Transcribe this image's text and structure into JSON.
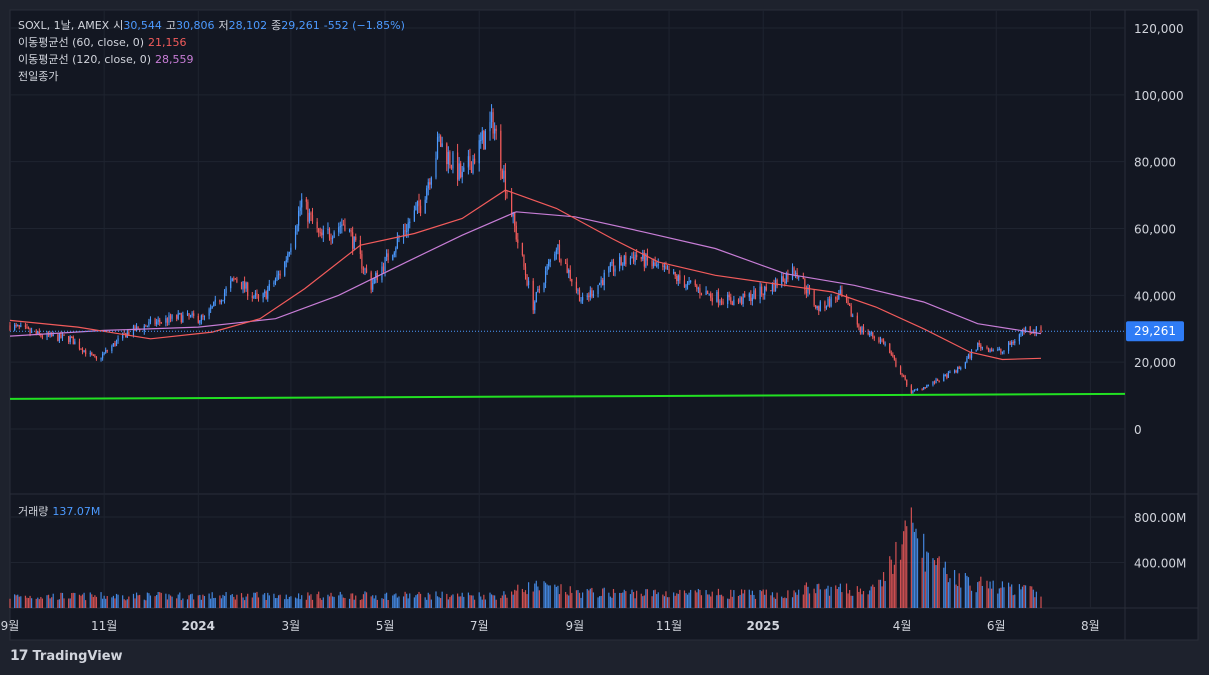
{
  "header": {
    "symbol": "SOXL, 1날, AMEX",
    "open_label": "시",
    "open": "30,544",
    "high_label": "고",
    "high": "30,806",
    "low_label": "저",
    "low": "28,102",
    "close_label": "종",
    "close": "29,261",
    "change": "-552 (−1.85%)"
  },
  "indicators": [
    {
      "label": "이동평균선 (60, close, 0)",
      "value": "21,156",
      "color": "#f25b5b"
    },
    {
      "label": "이동평균선 (120, close, 0)",
      "value": "28,559",
      "color": "#c77dd6"
    }
  ],
  "prev_close_label": "전일종가",
  "volume": {
    "label": "거래량",
    "value": "137.07M"
  },
  "brand": {
    "name": "TradingView",
    "logo": "17"
  },
  "colors": {
    "up": "#4c9aff",
    "down": "#f25b5b",
    "ma60": "#f25b5b",
    "ma120": "#c77dd6",
    "trendline": "#22e022",
    "price_tag": "#2f7cf6"
  },
  "chart_data": {
    "type": "candlestick",
    "price_axis": {
      "ticks": [
        0,
        20000,
        40000,
        60000,
        80000,
        100000,
        120000
      ],
      "tick_labels": [
        "0",
        "20,000",
        "40,000",
        "60,000",
        "80,000",
        "100,000",
        "120,000"
      ],
      "range": [
        -7000,
        125000
      ]
    },
    "volume_axis": {
      "ticks": [
        400,
        800
      ],
      "tick_labels": [
        "400.00M",
        "800.00M"
      ],
      "unit": "M"
    },
    "x_axis": {
      "labels": [
        "9월",
        "11월",
        "2024",
        "3월",
        "5월",
        "7월",
        "9월",
        "11월",
        "2025",
        "4월",
        "6월",
        "8월"
      ],
      "bold": [
        false,
        false,
        true,
        false,
        false,
        false,
        false,
        false,
        true,
        false,
        false,
        false
      ]
    },
    "last_price": 29261,
    "last_price_label": "29,261",
    "close_path": [
      {
        "t": "2023-09-01",
        "v": 31000
      },
      {
        "t": "2023-09-20",
        "v": 28000
      },
      {
        "t": "2023-10-10",
        "v": 27000
      },
      {
        "t": "2023-10-27",
        "v": 20500
      },
      {
        "t": "2023-11-15",
        "v": 28500
      },
      {
        "t": "2023-12-01",
        "v": 31500
      },
      {
        "t": "2023-12-20",
        "v": 33500
      },
      {
        "t": "2024-01-05",
        "v": 33000
      },
      {
        "t": "2024-01-25",
        "v": 45000
      },
      {
        "t": "2024-02-10",
        "v": 38000
      },
      {
        "t": "2024-02-25",
        "v": 48000
      },
      {
        "t": "2024-03-08",
        "v": 68000
      },
      {
        "t": "2024-03-20",
        "v": 57000
      },
      {
        "t": "2024-04-05",
        "v": 62000
      },
      {
        "t": "2024-04-22",
        "v": 43000
      },
      {
        "t": "2024-05-10",
        "v": 57000
      },
      {
        "t": "2024-05-25",
        "v": 68000
      },
      {
        "t": "2024-06-05",
        "v": 86000
      },
      {
        "t": "2024-06-20",
        "v": 75000
      },
      {
        "t": "2024-07-10",
        "v": 92000
      },
      {
        "t": "2024-07-25",
        "v": 58000
      },
      {
        "t": "2024-08-05",
        "v": 37000
      },
      {
        "t": "2024-08-20",
        "v": 55000
      },
      {
        "t": "2024-09-06",
        "v": 38000
      },
      {
        "t": "2024-09-25",
        "v": 48000
      },
      {
        "t": "2024-10-10",
        "v": 52000
      },
      {
        "t": "2024-10-25",
        "v": 48000
      },
      {
        "t": "2024-11-10",
        "v": 44000
      },
      {
        "t": "2024-11-28",
        "v": 40000
      },
      {
        "t": "2024-12-15",
        "v": 38000
      },
      {
        "t": "2025-01-05",
        "v": 42000
      },
      {
        "t": "2025-01-22",
        "v": 48000
      },
      {
        "t": "2025-02-05",
        "v": 36000
      },
      {
        "t": "2025-02-20",
        "v": 40000
      },
      {
        "t": "2025-03-05",
        "v": 30000
      },
      {
        "t": "2025-03-20",
        "v": 26000
      },
      {
        "t": "2025-04-07",
        "v": 11000
      },
      {
        "t": "2025-04-22",
        "v": 14000
      },
      {
        "t": "2025-05-08",
        "v": 18000
      },
      {
        "t": "2025-05-20",
        "v": 25000
      },
      {
        "t": "2025-06-05",
        "v": 23000
      },
      {
        "t": "2025-06-20",
        "v": 30000
      },
      {
        "t": "2025-06-30",
        "v": 29261
      }
    ],
    "ma60_path": [
      {
        "t": "2023-09-01",
        "v": 32500
      },
      {
        "t": "2023-10-15",
        "v": 30500
      },
      {
        "t": "2023-12-01",
        "v": 27000
      },
      {
        "t": "2024-01-10",
        "v": 29000
      },
      {
        "t": "2024-02-10",
        "v": 33000
      },
      {
        "t": "2024-03-10",
        "v": 42000
      },
      {
        "t": "2024-04-15",
        "v": 55000
      },
      {
        "t": "2024-05-20",
        "v": 58500
      },
      {
        "t": "2024-06-20",
        "v": 63000
      },
      {
        "t": "2024-07-18",
        "v": 71500
      },
      {
        "t": "2024-08-20",
        "v": 66000
      },
      {
        "t": "2024-09-25",
        "v": 57000
      },
      {
        "t": "2024-10-25",
        "v": 50000
      },
      {
        "t": "2024-12-01",
        "v": 46000
      },
      {
        "t": "2025-01-15",
        "v": 43000
      },
      {
        "t": "2025-02-15",
        "v": 41000
      },
      {
        "t": "2025-03-15",
        "v": 36500
      },
      {
        "t": "2025-04-15",
        "v": 30000
      },
      {
        "t": "2025-05-15",
        "v": 23000
      },
      {
        "t": "2025-06-05",
        "v": 20800
      },
      {
        "t": "2025-06-30",
        "v": 21156
      }
    ],
    "ma120_path": [
      {
        "t": "2023-09-01",
        "v": 27800
      },
      {
        "t": "2023-11-01",
        "v": 29500
      },
      {
        "t": "2024-01-01",
        "v": 30500
      },
      {
        "t": "2024-02-20",
        "v": 33000
      },
      {
        "t": "2024-04-01",
        "v": 40000
      },
      {
        "t": "2024-05-15",
        "v": 50000
      },
      {
        "t": "2024-06-20",
        "v": 58000
      },
      {
        "t": "2024-07-25",
        "v": 65000
      },
      {
        "t": "2024-09-01",
        "v": 63500
      },
      {
        "t": "2024-10-15",
        "v": 59000
      },
      {
        "t": "2024-12-01",
        "v": 54000
      },
      {
        "t": "2025-01-15",
        "v": 46500
      },
      {
        "t": "2025-03-01",
        "v": 43000
      },
      {
        "t": "2025-04-15",
        "v": 38000
      },
      {
        "t": "2025-05-20",
        "v": 31500
      },
      {
        "t": "2025-06-30",
        "v": 28559
      }
    ],
    "trendline": [
      {
        "t": "2023-09-01",
        "v": 9000
      },
      {
        "t": "2025-08-15",
        "v": 10500
      }
    ],
    "volume_profile": [
      {
        "t": "2023-09-01",
        "v": 120
      },
      {
        "t": "2024-07-15",
        "v": 130
      },
      {
        "t": "2024-08-05",
        "v": 230
      },
      {
        "t": "2024-09-01",
        "v": 160
      },
      {
        "t": "2025-01-20",
        "v": 140
      },
      {
        "t": "2025-01-28",
        "v": 200
      },
      {
        "t": "2025-03-15",
        "v": 180
      },
      {
        "t": "2025-04-07",
        "v": 820
      },
      {
        "t": "2025-04-22",
        "v": 420
      },
      {
        "t": "2025-05-15",
        "v": 260
      },
      {
        "t": "2025-06-30",
        "v": 160
      }
    ]
  }
}
